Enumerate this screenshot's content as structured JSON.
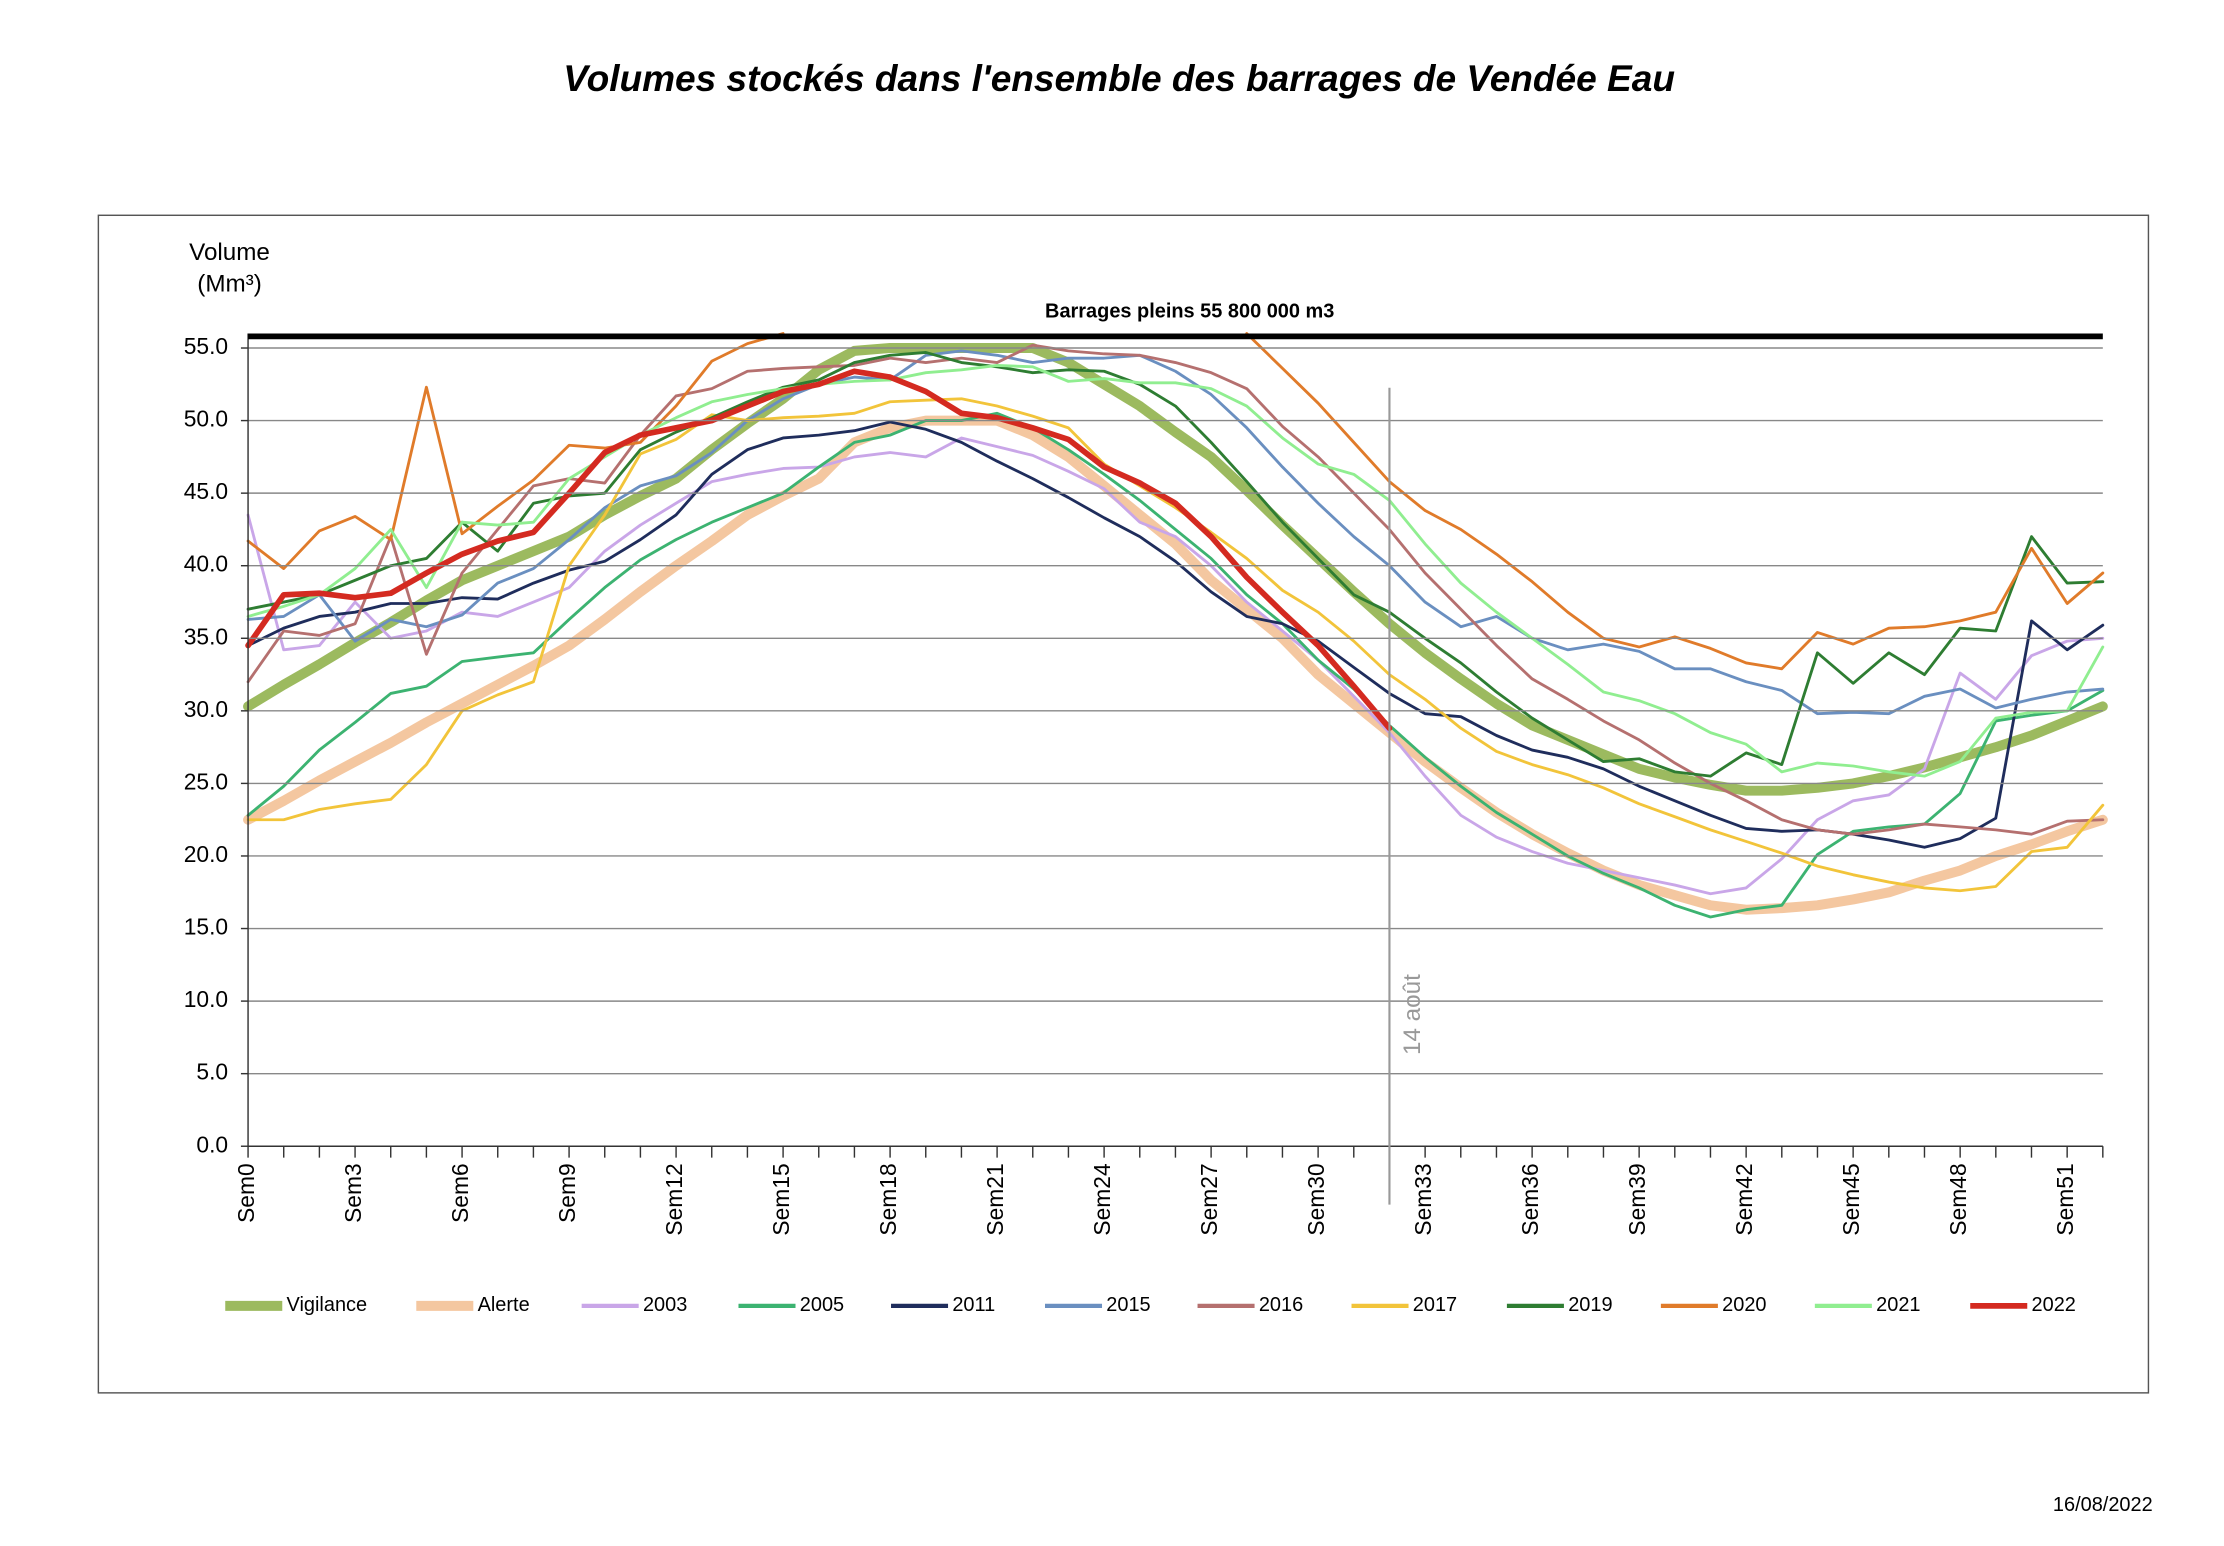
{
  "chart_data": {
    "type": "line",
    "title": "Volumes stockés dans l'ensemble des barrages de Vendée Eau",
    "ylabel": [
      "Volume",
      "(Mm³)"
    ],
    "date": "16/08/2022",
    "full_line": {
      "value": 55.8,
      "label": "Barrages pleins 55 800 000 m3"
    },
    "annotations": [
      {
        "text": "14 août",
        "x": 32
      }
    ],
    "categories": [
      "Sem0",
      null,
      null,
      "Sem3",
      null,
      null,
      "Sem6",
      null,
      null,
      "Sem9",
      null,
      null,
      "Sem12",
      null,
      null,
      "Sem15",
      null,
      null,
      "Sem18",
      null,
      null,
      "Sem21",
      null,
      null,
      "Sem24",
      null,
      null,
      "Sem27",
      null,
      null,
      "Sem30",
      null,
      null,
      "Sem33",
      null,
      null,
      "Sem36",
      null,
      null,
      "Sem39",
      null,
      null,
      "Sem42",
      null,
      null,
      "Sem45",
      null,
      null,
      "Sem48",
      null,
      null,
      "Sem51",
      null
    ],
    "ylim": [
      0,
      56
    ],
    "yticks": [
      {
        "value": 0,
        "label": "0.0"
      },
      {
        "value": 5,
        "label": "5.0"
      },
      {
        "value": 10,
        "label": "10.0"
      },
      {
        "value": 15,
        "label": "15.0"
      },
      {
        "value": 20,
        "label": "20.0"
      },
      {
        "value": 25,
        "label": "25.0"
      },
      {
        "value": 30,
        "label": "30.0"
      },
      {
        "value": 35,
        "label": "35.0"
      },
      {
        "value": 40,
        "label": "40.0"
      },
      {
        "value": 45,
        "label": "45.0"
      },
      {
        "value": 50,
        "label": "50.0"
      },
      {
        "value": 55,
        "label": "55.0"
      }
    ],
    "grid": true,
    "series": [
      {
        "name": "Vigilance",
        "color": "#9cba5f",
        "width": 7,
        "values": [
          30.3,
          31.8,
          33.2,
          34.7,
          36.1,
          37.6,
          39.0,
          40.0,
          41.0,
          42.0,
          43.5,
          44.8,
          46.0,
          48.0,
          49.8,
          51.5,
          53.5,
          54.8,
          55,
          55,
          55,
          55,
          55,
          54,
          52.5,
          51,
          49.2,
          47.5,
          45.2,
          42.8,
          40.5,
          38.2,
          36,
          34,
          32.2,
          30.5,
          29,
          28,
          27,
          26,
          25.4,
          24.9,
          24.5,
          24.5,
          24.7,
          25,
          25.5,
          26.1,
          26.8,
          27.5,
          28.3,
          29.3,
          30.3
        ]
      },
      {
        "name": "Alerte",
        "color": "#f4c7a0",
        "width": 7,
        "values": [
          22.5,
          23.8,
          25.2,
          26.5,
          27.8,
          29.2,
          30.5,
          31.8,
          33.1,
          34.5,
          36.3,
          38.2,
          40,
          41.7,
          43.5,
          44.8,
          46,
          48.5,
          49.5,
          50,
          50,
          50,
          49,
          47.5,
          45.5,
          43.5,
          41.5,
          39,
          37,
          35,
          32.5,
          30.5,
          28.5,
          26.5,
          24.7,
          23,
          21.5,
          20.2,
          19,
          18,
          17.3,
          16.6,
          16.3,
          16.4,
          16.6,
          17,
          17.5,
          18.3,
          19,
          20,
          20.8,
          21.7,
          22.5
        ]
      },
      {
        "name": "2003",
        "color": "#c9a6e8",
        "width": 2,
        "values": [
          43.5,
          34.2,
          34.5,
          37.5,
          35,
          35.5,
          36.8,
          36.5,
          37.5,
          38.5,
          41,
          42.8,
          44.3,
          45.8,
          46.3,
          46.7,
          46.8,
          47.5,
          47.8,
          47.5,
          48.8,
          48.2,
          47.6,
          46.5,
          45.3,
          43,
          42,
          40,
          37.5,
          35.5,
          33.5,
          31,
          28.5,
          25.5,
          22.8,
          21.3,
          20.3,
          19.5,
          19,
          18.5,
          18,
          17.4,
          17.8,
          19.8,
          22.5,
          23.8,
          24.2,
          26,
          32.6,
          30.8,
          33.8,
          34.8,
          35
        ]
      },
      {
        "name": "2005",
        "color": "#3cb371",
        "width": 2,
        "values": [
          22.8,
          24.8,
          27.3,
          29.2,
          31.2,
          31.7,
          33.4,
          33.7,
          34,
          36.3,
          38.5,
          40.4,
          41.8,
          43,
          44,
          45,
          46.8,
          48.5,
          49,
          50,
          50,
          50.5,
          49.5,
          48,
          46.3,
          44.5,
          42.5,
          40.5,
          38,
          36,
          33.5,
          31.5,
          29,
          26.8,
          24.8,
          23,
          21.5,
          20,
          18.8,
          17.8,
          16.6,
          15.8,
          16.3,
          16.6,
          20.1,
          21.7,
          22,
          22.2,
          24.3,
          29.3,
          29.7,
          30,
          31.4
        ]
      },
      {
        "name": "2011",
        "color": "#1f2d5c",
        "width": 2,
        "values": [
          34.5,
          35.7,
          36.5,
          36.8,
          37.4,
          37.4,
          37.8,
          37.7,
          38.8,
          39.7,
          40.3,
          41.8,
          43.5,
          46.3,
          48,
          48.8,
          49,
          49.3,
          49.9,
          49.4,
          48.5,
          47.2,
          46,
          44.7,
          43.3,
          42,
          40.3,
          38.2,
          36.5,
          36,
          34.8,
          33,
          31.2,
          29.8,
          29.6,
          28.3,
          27.3,
          26.8,
          26,
          24.8,
          23.8,
          22.8,
          21.9,
          21.7,
          21.8,
          21.5,
          21.1,
          20.6,
          21.2,
          22.6,
          36.2,
          34.2,
          35.9
        ]
      },
      {
        "name": "2015",
        "color": "#6a8fc0",
        "width": 2,
        "values": [
          36.3,
          36.5,
          38,
          34.8,
          36.3,
          35.8,
          36.6,
          38.8,
          39.8,
          41.8,
          44,
          45.5,
          46.2,
          47.8,
          50,
          51.5,
          52.5,
          53,
          52.8,
          54.5,
          54.8,
          54.5,
          54,
          54.3,
          54.3,
          54.5,
          53.4,
          51.8,
          49.5,
          46.8,
          44.3,
          42,
          40,
          37.5,
          35.8,
          36.5,
          35,
          34.2,
          34.6,
          34.1,
          32.9,
          32.9,
          32,
          31.4,
          29.8,
          29.9,
          29.8,
          31,
          31.5,
          30.2,
          30.8,
          31.3,
          31.5
        ]
      },
      {
        "name": "2016",
        "color": "#b5706f",
        "width": 2,
        "values": [
          32,
          35.5,
          35.2,
          36,
          42,
          33.9,
          39.5,
          42.5,
          45.5,
          46,
          45.7,
          49,
          51.7,
          52.2,
          53.4,
          53.6,
          53.7,
          53.8,
          54.3,
          54,
          54.3,
          54,
          55.2,
          54.8,
          54.6,
          54.5,
          54,
          53.3,
          52.2,
          49.6,
          47.5,
          45,
          42.5,
          39.5,
          37,
          34.5,
          32.2,
          30.8,
          29.3,
          28,
          26.4,
          25,
          23.8,
          22.5,
          21.8,
          21.5,
          21.8,
          22.2,
          22,
          21.8,
          21.5,
          22.4,
          22.5
        ]
      },
      {
        "name": "2017",
        "color": "#f2c43a",
        "width": 2,
        "values": [
          22.5,
          22.5,
          23.2,
          23.6,
          23.9,
          26.3,
          30,
          31.1,
          32,
          40,
          43.5,
          47.7,
          48.7,
          50.4,
          50,
          50.2,
          50.3,
          50.5,
          51.3,
          51.4,
          51.5,
          51,
          50.3,
          49.5,
          47,
          45.5,
          44,
          42.3,
          40.5,
          38.3,
          36.8,
          34.8,
          32.5,
          30.8,
          28.8,
          27.2,
          26.3,
          25.6,
          24.7,
          23.6,
          22.7,
          21.8,
          21,
          20.2,
          19.3,
          18.7,
          18.2,
          17.8,
          17.6,
          17.9,
          20.3,
          20.6,
          23.5
        ]
      },
      {
        "name": "2019",
        "color": "#2e7d32",
        "width": 2,
        "values": [
          37,
          37.5,
          38,
          39,
          40,
          40.5,
          43,
          41,
          44.3,
          44.8,
          45,
          48,
          49.2,
          50.2,
          51.3,
          52.3,
          52.8,
          54,
          54.5,
          54.7,
          54,
          53.7,
          53.3,
          53.5,
          53.4,
          52.5,
          51,
          48.5,
          45.8,
          43,
          40.5,
          38,
          36.8,
          35,
          33.3,
          31.3,
          29.5,
          28,
          26.5,
          26.7,
          25.8,
          25.5,
          27.1,
          26.3,
          34,
          31.9,
          34,
          32.5,
          35.7,
          35.5,
          42,
          38.8,
          38.9
        ]
      },
      {
        "name": "2020",
        "color": "#e07b2a",
        "width": 2,
        "values": [
          41.7,
          39.8,
          42.4,
          43.4,
          41.8,
          52.3,
          42.2,
          44.1,
          45.9,
          48.3,
          48.1,
          48.5,
          51,
          54.1,
          55.3,
          56,
          null,
          null,
          null,
          null,
          null,
          null,
          null,
          null,
          null,
          null,
          null,
          null,
          56,
          53.6,
          51.2,
          48.5,
          45.8,
          43.8,
          42.5,
          40.8,
          38.9,
          36.8,
          35,
          34.4,
          35.1,
          34.3,
          33.3,
          32.9,
          35.4,
          34.6,
          35.7,
          35.8,
          36.2,
          36.8,
          41.2,
          37.4,
          39.5
        ]
      },
      {
        "name": "2021",
        "color": "#90ee90",
        "width": 2,
        "values": [
          36.5,
          37.2,
          38,
          39.8,
          42.5,
          38.5,
          43,
          42.8,
          43,
          46,
          47.5,
          49,
          50.2,
          51.3,
          51.8,
          52.2,
          52.5,
          52.7,
          52.8,
          53.3,
          53.5,
          53.8,
          53.7,
          52.7,
          52.9,
          52.6,
          52.6,
          52.2,
          51,
          48.8,
          47,
          46.3,
          44.5,
          41.5,
          38.8,
          36.8,
          35,
          33.2,
          31.3,
          30.7,
          29.8,
          28.5,
          27.7,
          25.8,
          26.4,
          26.2,
          25.8,
          25.5,
          26.5,
          29.5,
          29.9,
          30,
          34.4
        ]
      },
      {
        "name": "2022",
        "color": "#d42a20",
        "width": 4,
        "values": [
          34.5,
          38,
          38.1,
          37.8,
          38.1,
          39.5,
          40.8,
          41.7,
          42.3,
          45,
          47.8,
          49,
          49.5,
          50,
          51,
          52,
          52.5,
          53.4,
          53,
          52,
          50.5,
          50.2,
          49.5,
          48.7,
          46.8,
          45.7,
          44.3,
          42,
          39.2,
          36.8,
          34.5,
          31.7,
          28.8,
          null,
          null,
          null,
          null,
          null,
          null,
          null,
          null,
          null,
          null,
          null,
          null,
          null,
          null,
          null,
          null,
          null,
          null,
          null,
          null
        ]
      }
    ]
  }
}
